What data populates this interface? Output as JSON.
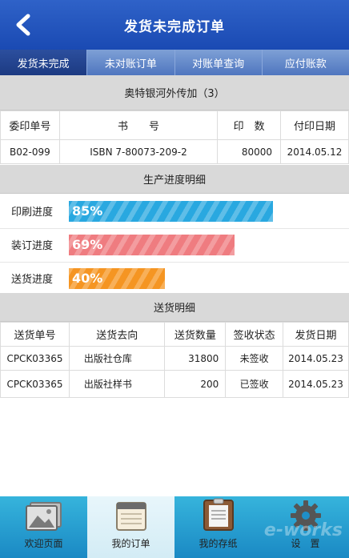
{
  "header": {
    "title": "发货未完成订单",
    "back_icon": "back-chevron-icon"
  },
  "tabs": [
    {
      "label": "发货未完成",
      "active": true
    },
    {
      "label": "未对账订单",
      "active": false
    },
    {
      "label": "对账单查询",
      "active": false
    },
    {
      "label": "应付账款",
      "active": false
    }
  ],
  "order": {
    "title": "奥特银河外传加（3）",
    "headers": [
      "委印单号",
      "书　　号",
      "印　数",
      "付印日期"
    ],
    "row": [
      "B02-099",
      "ISBN 7-80073-209-2",
      "80000",
      "2014.05.12"
    ]
  },
  "progress": {
    "title": "生产进度明细",
    "items": [
      {
        "label": "印刷进度",
        "value": "85%",
        "percent": 85,
        "color": "#29a8e0"
      },
      {
        "label": "装订进度",
        "value": "69%",
        "percent": 69,
        "color": "#ef7c80"
      },
      {
        "label": "送货进度",
        "value": "40%",
        "percent": 40,
        "color": "#f59522"
      }
    ]
  },
  "delivery": {
    "title": "送货明细",
    "headers": [
      "送货单号",
      "送货去向",
      "送货数量",
      "签收状态",
      "发货日期"
    ],
    "rows": [
      [
        "CPCK03365",
        "出版社仓库",
        "31800",
        "未签收",
        "2014.05.23"
      ],
      [
        "CPCK03365",
        "出版社样书",
        "200",
        "已签收",
        "2014.05.23"
      ]
    ]
  },
  "bottom_nav": [
    {
      "label": "欢迎页面",
      "icon": "photo-icon",
      "active": false
    },
    {
      "label": "我的订单",
      "icon": "notepad-icon",
      "active": true
    },
    {
      "label": "我的存纸",
      "icon": "clipboard-icon",
      "active": false
    },
    {
      "label": "设　置",
      "icon": "gear-icon",
      "active": false
    }
  ],
  "watermark": "e-works"
}
